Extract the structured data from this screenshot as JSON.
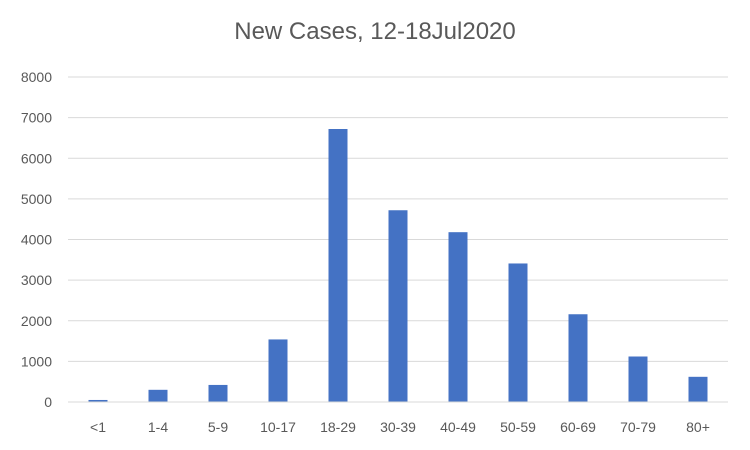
{
  "colors": {
    "bar": "#4472C4",
    "grid": "#D9D9D9",
    "text": "#595959",
    "background": "#FFFFFF"
  },
  "chart_data": {
    "type": "bar",
    "title": "New Cases, 12-18Jul2020",
    "xlabel": "",
    "ylabel": "",
    "categories": [
      "<1",
      "1-4",
      "5-9",
      "10-17",
      "18-29",
      "30-39",
      "40-49",
      "50-59",
      "60-69",
      "70-79",
      "80+"
    ],
    "values": [
      50,
      300,
      420,
      1540,
      6720,
      4720,
      4180,
      3410,
      2160,
      1120,
      620
    ],
    "ylim": [
      0,
      8000
    ],
    "yticks": [
      0,
      1000,
      2000,
      3000,
      4000,
      5000,
      6000,
      7000,
      8000
    ],
    "grid": true,
    "legend": "none"
  }
}
